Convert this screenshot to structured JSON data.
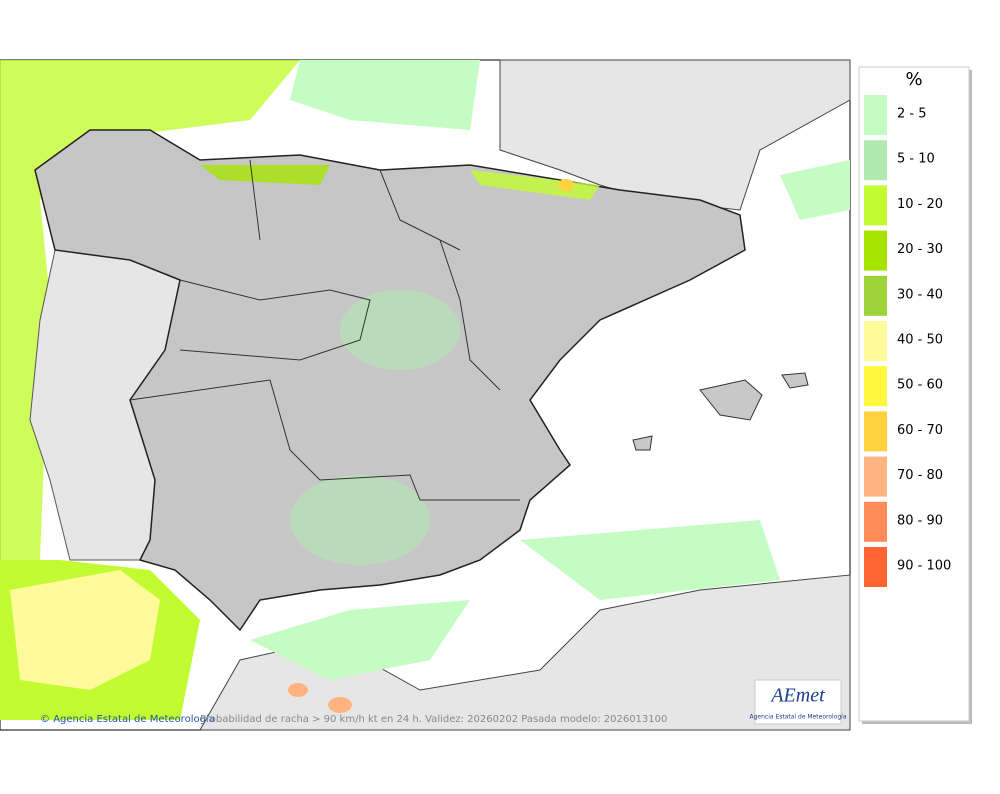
{
  "legend": {
    "title": "%",
    "items": [
      {
        "label": "2 - 5",
        "color": "#c4fcc4"
      },
      {
        "label": "5 - 10",
        "color": "#b0eab0"
      },
      {
        "label": "10 - 20",
        "color": "#c2fb32"
      },
      {
        "label": "20 - 30",
        "color": "#a6e400"
      },
      {
        "label": "30 - 40",
        "color": "#9ed43a"
      },
      {
        "label": "40 - 50",
        "color": "#fffb9a"
      },
      {
        "label": "50 - 60",
        "color": "#fff83e"
      },
      {
        "label": "60 - 70",
        "color": "#ffd23e"
      },
      {
        "label": "70 - 80",
        "color": "#ffb482"
      },
      {
        "label": "80 - 90",
        "color": "#ff8c58"
      },
      {
        "label": "90 - 100",
        "color": "#ff6432"
      }
    ]
  },
  "footer": {
    "credit": "Agencia Estatal de Meteorología",
    "caption": "Probabilidad de racha > 90 km/h kt en 24 h. Validez: 20260202 Pasada modelo: 2026013100"
  },
  "logo": {
    "name": "AEmet",
    "subtitle": "Agencia Estatal de Meteorología"
  }
}
